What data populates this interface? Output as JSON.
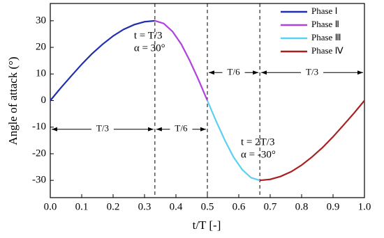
{
  "chart_data": {
    "type": "line",
    "xlabel": "t/T [-]",
    "ylabel": "Angle of attack (°)",
    "xlim": [
      0,
      1
    ],
    "ylim": [
      -36.5,
      36.5
    ],
    "xticks": [
      {
        "value": 0,
        "label": "0.0"
      },
      0.1,
      0.2,
      0.3,
      0.4,
      0.5,
      0.6,
      0.7,
      0.8,
      0.9,
      {
        "value": 1,
        "label": "1.0"
      }
    ],
    "yticks": [
      -30,
      -20,
      -10,
      0,
      10,
      20,
      30
    ],
    "legend": "upper right",
    "vlines": [
      0.333,
      0.5,
      0.667
    ],
    "spans": [
      "T/3",
      "T/6",
      "T/6",
      "T/3"
    ],
    "annotations": [
      "α = 30°",
      "t = T/3",
      "α = -30°",
      "t = 2T/3"
    ],
    "series": [
      {
        "name": "Phase Ⅰ",
        "color": "#1f2fb0",
        "x": [
          0,
          0.033,
          0.067,
          0.1,
          0.133,
          0.167,
          0.2,
          0.233,
          0.267,
          0.3,
          0.333
        ],
        "values": [
          0,
          4.69,
          9.27,
          13.62,
          17.63,
          21.21,
          24.27,
          26.73,
          28.53,
          29.63,
          30
        ]
      },
      {
        "name": "Phase Ⅱ",
        "color": "#b040e0",
        "x": [
          0.333,
          0.361,
          0.389,
          0.417,
          0.444,
          0.472,
          0.5
        ],
        "values": [
          30,
          28.98,
          25.98,
          21.21,
          15,
          7.76,
          0
        ]
      },
      {
        "name": "Phase Ⅲ",
        "color": "#5cd0f0",
        "x": [
          0.5,
          0.528,
          0.556,
          0.583,
          0.611,
          0.639,
          0.667
        ],
        "values": [
          0,
          -7.76,
          -15,
          -21.21,
          -25.98,
          -28.98,
          -30
        ]
      },
      {
        "name": "Phase Ⅳ",
        "color": "#a82020",
        "x": [
          0.667,
          0.7,
          0.733,
          0.767,
          0.8,
          0.833,
          0.867,
          0.9,
          0.933,
          0.967,
          1
        ],
        "values": [
          -30,
          -29.63,
          -28.53,
          -26.73,
          -24.27,
          -21.21,
          -17.63,
          -13.62,
          -9.27,
          -4.69,
          0
        ]
      }
    ]
  }
}
